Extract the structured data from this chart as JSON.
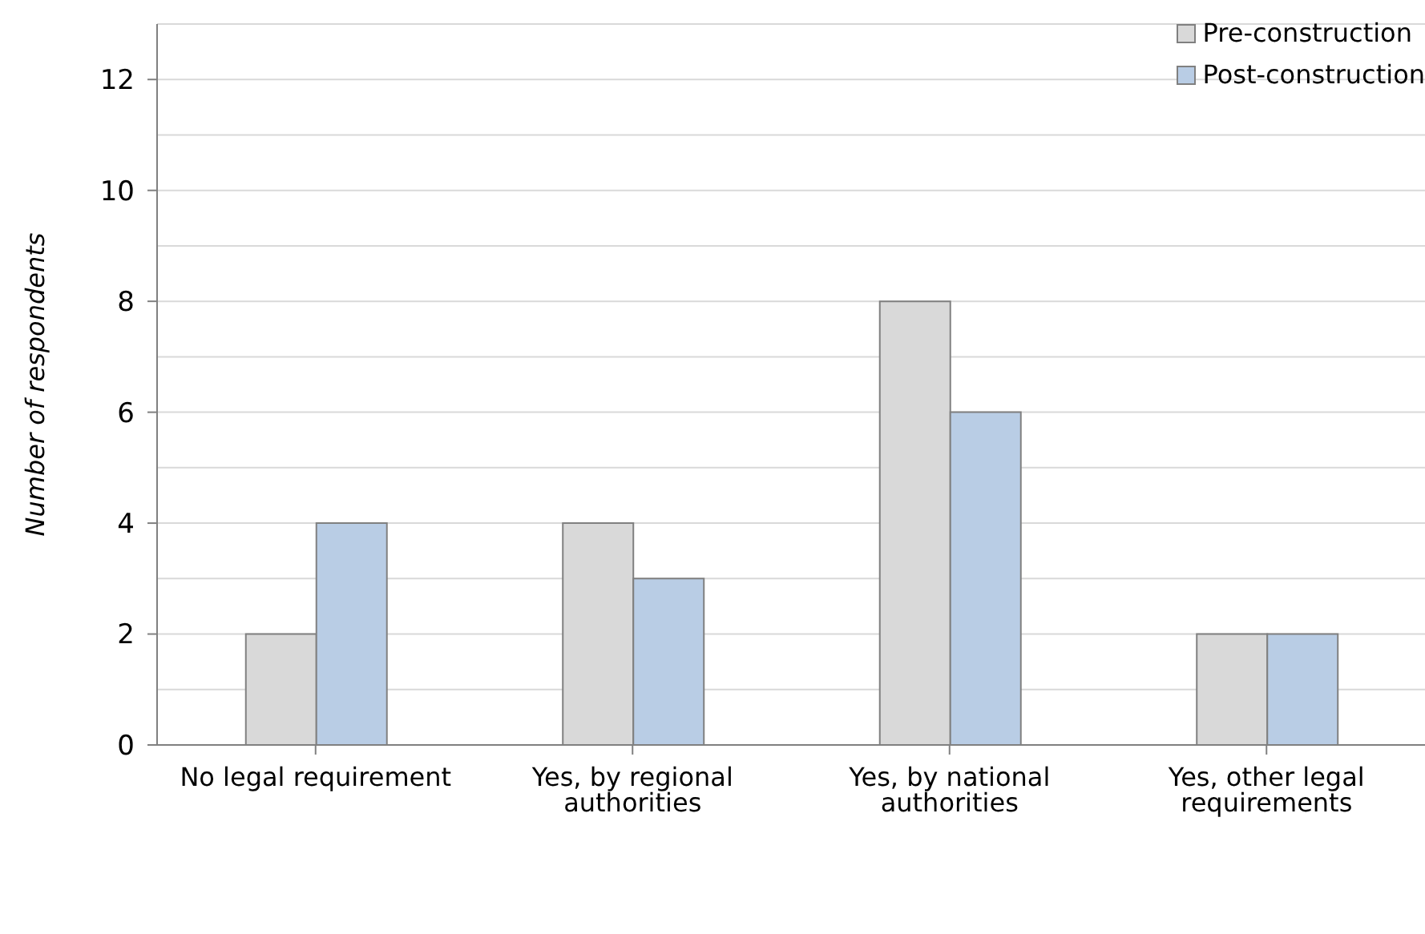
{
  "chart_data": {
    "type": "bar",
    "ylabel": "Number of respondents",
    "categories": [
      "No legal requirement",
      "Yes, by regional authorities",
      "Yes, by national authorities",
      "Yes, other legal requirements"
    ],
    "series": [
      {
        "name": "Pre-construction",
        "color": "#d9d9d9",
        "values": [
          2,
          4,
          8,
          2
        ]
      },
      {
        "name": "Post-construction",
        "color": "#b9cde5",
        "values": [
          4,
          3,
          6,
          2
        ]
      }
    ],
    "ylim": [
      0,
      13
    ],
    "yticks": [
      0,
      {
        "value": 1,
        "label": null
      },
      2,
      {
        "value": 3,
        "label": null
      },
      4,
      {
        "value": 5,
        "label": null
      },
      6,
      {
        "value": 7,
        "label": null
      },
      8,
      {
        "value": 9,
        "label": null
      },
      10,
      {
        "value": 11,
        "label": null
      },
      12,
      {
        "value": 13,
        "label": null
      }
    ],
    "grid": "y",
    "legend": "top right"
  }
}
